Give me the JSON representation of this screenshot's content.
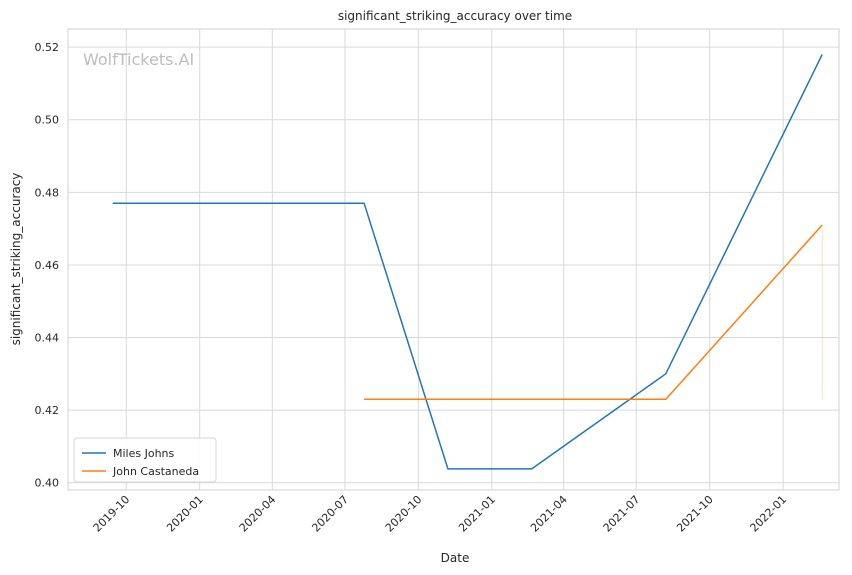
{
  "chart_data": {
    "type": "line",
    "title": "significant_striking_accuracy over time",
    "xlabel": "Date",
    "ylabel": "significant_striking_accuracy",
    "watermark": "WolfTickets.AI",
    "x_ticks": [
      "2019-10",
      "2020-01",
      "2020-04",
      "2020-07",
      "2020-10",
      "2021-01",
      "2021-04",
      "2021-07",
      "2021-10",
      "2022-01"
    ],
    "y_ticks": [
      "0.40",
      "0.42",
      "0.44",
      "0.46",
      "0.48",
      "0.50",
      "0.52"
    ],
    "xlim": [
      "2019-07-20",
      "2022-03-12"
    ],
    "ylim": [
      0.398,
      0.525
    ],
    "grid": true,
    "legend_position": "lower-left",
    "series": [
      {
        "name": "Miles Johns",
        "color": "#1f77b4",
        "points": [
          {
            "x": "2019-09-14",
            "y": 0.477
          },
          {
            "x": "2020-07-25",
            "y": 0.477
          },
          {
            "x": "2020-11-07",
            "y": 0.4038
          },
          {
            "x": "2021-02-20",
            "y": 0.4038
          },
          {
            "x": "2021-08-07",
            "y": 0.43
          },
          {
            "x": "2022-02-19",
            "y": 0.518
          }
        ]
      },
      {
        "name": "John Castaneda",
        "color": "#ff7f0e",
        "points": [
          {
            "x": "2020-07-25",
            "y": 0.423
          },
          {
            "x": "2021-08-07",
            "y": 0.423
          },
          {
            "x": "2022-02-19",
            "y": 0.471
          }
        ]
      }
    ]
  }
}
